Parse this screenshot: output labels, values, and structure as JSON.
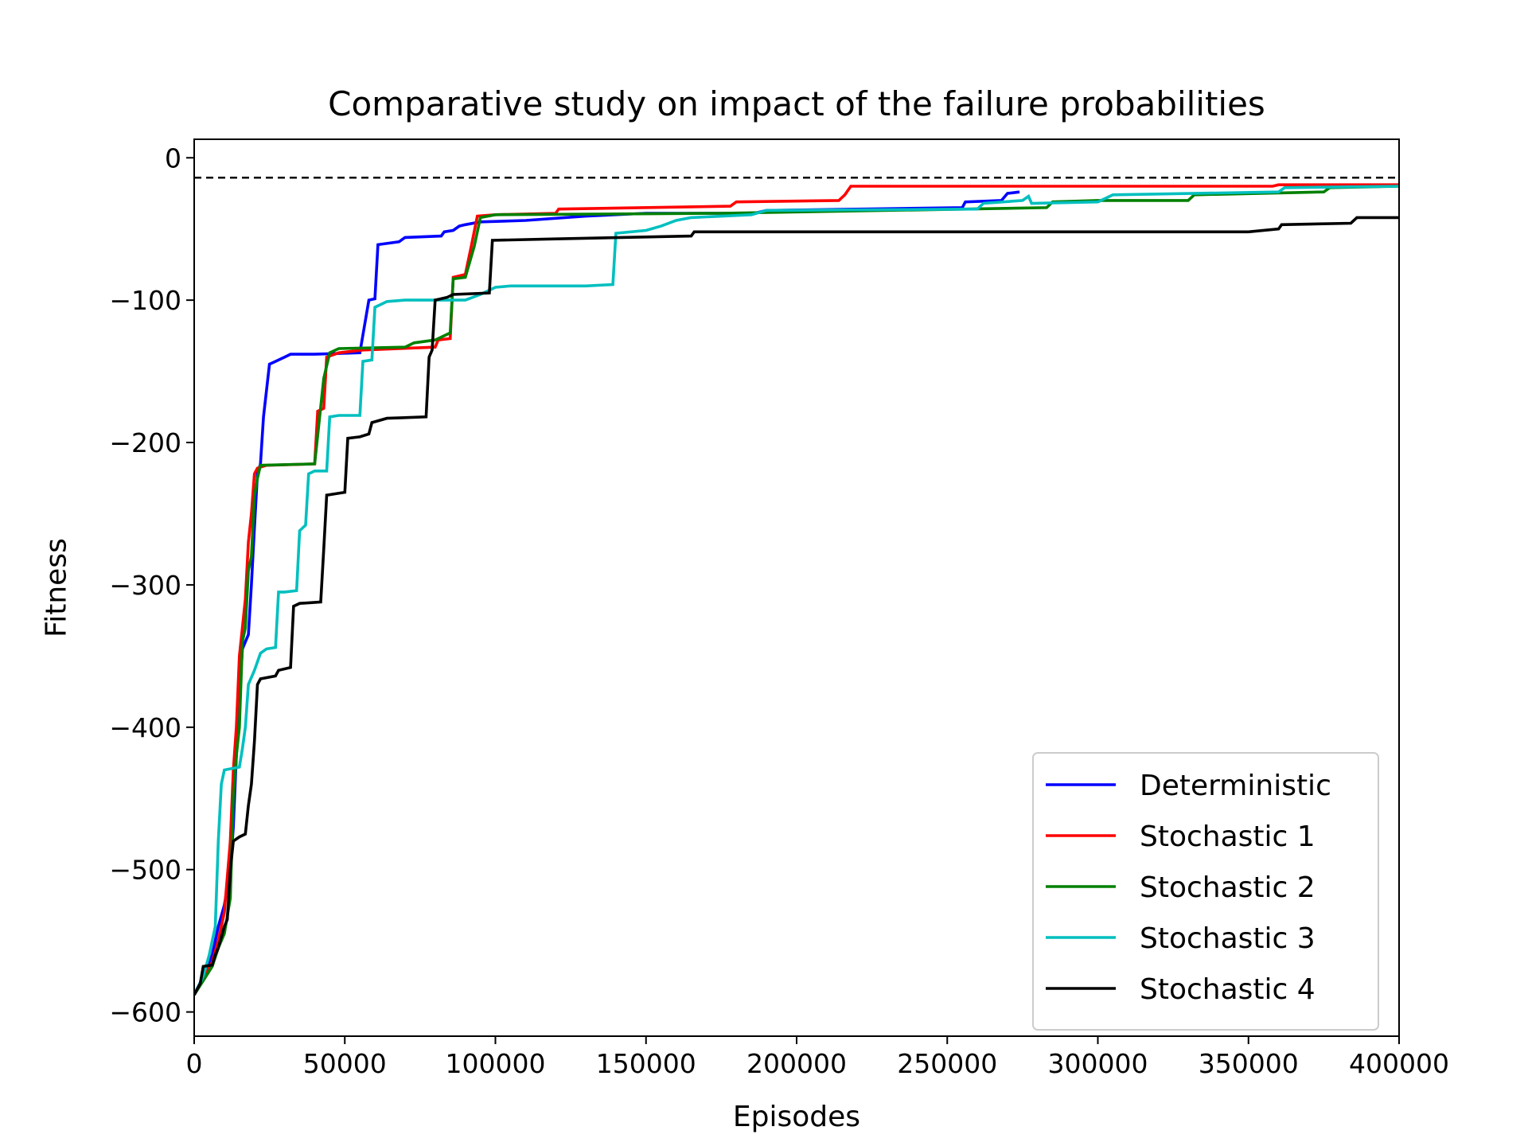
{
  "chart_data": {
    "type": "line",
    "title": "Comparative study on impact of the failure probabilities",
    "xlabel": "Episodes",
    "ylabel": "Fitness",
    "xlim": [
      0,
      400000
    ],
    "ylim": [
      -617,
      13
    ],
    "xticks": [
      "0",
      "50000",
      "100000",
      "150000",
      "200000",
      "250000",
      "300000",
      "350000",
      "400000"
    ],
    "xtick_values": [
      0,
      50000,
      100000,
      150000,
      200000,
      250000,
      300000,
      350000,
      400000
    ],
    "yticks": [
      "0",
      "−100",
      "−200",
      "−300",
      "−400",
      "−500",
      "−600"
    ],
    "ytick_values": [
      0,
      -100,
      -200,
      -300,
      -400,
      -500,
      -600
    ],
    "grid": false,
    "legend_position": "lower-right",
    "reference_line": {
      "y": -14,
      "style": "dashed",
      "color": "#000000"
    },
    "series": [
      {
        "name": "Deterministic",
        "color": "#0000ff",
        "points": [
          [
            0,
            -588
          ],
          [
            3000,
            -575
          ],
          [
            6000,
            -560
          ],
          [
            8000,
            -540
          ],
          [
            10000,
            -525
          ],
          [
            12000,
            -500
          ],
          [
            13000,
            -470
          ],
          [
            14000,
            -420
          ],
          [
            15000,
            -380
          ],
          [
            16000,
            -345
          ],
          [
            17000,
            -340
          ],
          [
            18000,
            -335
          ],
          [
            19000,
            -300
          ],
          [
            20000,
            -260
          ],
          [
            21000,
            -222
          ],
          [
            22000,
            -215
          ],
          [
            23000,
            -182
          ],
          [
            25000,
            -145
          ],
          [
            27000,
            -143
          ],
          [
            30000,
            -140
          ],
          [
            32000,
            -138
          ],
          [
            40000,
            -138
          ],
          [
            55000,
            -137
          ],
          [
            58000,
            -100
          ],
          [
            60000,
            -99
          ],
          [
            61000,
            -61
          ],
          [
            68000,
            -59
          ],
          [
            70000,
            -56
          ],
          [
            82000,
            -55
          ],
          [
            83000,
            -52
          ],
          [
            86000,
            -51
          ],
          [
            88000,
            -48
          ],
          [
            90000,
            -47
          ],
          [
            95000,
            -45
          ],
          [
            110000,
            -44
          ],
          [
            130000,
            -41
          ],
          [
            150000,
            -39
          ],
          [
            186000,
            -39
          ],
          [
            190000,
            -37
          ],
          [
            255000,
            -35
          ],
          [
            256000,
            -31
          ],
          [
            268000,
            -30
          ],
          [
            270000,
            -25
          ],
          [
            274000,
            -24
          ]
        ]
      },
      {
        "name": "Stochastic 1",
        "color": "#ff0000",
        "points": [
          [
            0,
            -588
          ],
          [
            3000,
            -576
          ],
          [
            6000,
            -565
          ],
          [
            8000,
            -550
          ],
          [
            10000,
            -530
          ],
          [
            12000,
            -480
          ],
          [
            13000,
            -430
          ],
          [
            14000,
            -400
          ],
          [
            15000,
            -350
          ],
          [
            16000,
            -330
          ],
          [
            17000,
            -310
          ],
          [
            18000,
            -270
          ],
          [
            19000,
            -250
          ],
          [
            20000,
            -222
          ],
          [
            21000,
            -218
          ],
          [
            24000,
            -216
          ],
          [
            40000,
            -215
          ],
          [
            41000,
            -178
          ],
          [
            43000,
            -176
          ],
          [
            44000,
            -140
          ],
          [
            48000,
            -137
          ],
          [
            56000,
            -135
          ],
          [
            80000,
            -133
          ],
          [
            81000,
            -128
          ],
          [
            85000,
            -127
          ],
          [
            86000,
            -84
          ],
          [
            90000,
            -82
          ],
          [
            92000,
            -62
          ],
          [
            94000,
            -41
          ],
          [
            100000,
            -40
          ],
          [
            120000,
            -39
          ],
          [
            121000,
            -36
          ],
          [
            178000,
            -34
          ],
          [
            180000,
            -31
          ],
          [
            214000,
            -30
          ],
          [
            216000,
            -26
          ],
          [
            218000,
            -20
          ],
          [
            358000,
            -20
          ],
          [
            360000,
            -19
          ],
          [
            400000,
            -19
          ]
        ]
      },
      {
        "name": "Stochastic 2",
        "color": "#008000",
        "points": [
          [
            0,
            -588
          ],
          [
            3000,
            -578
          ],
          [
            6000,
            -568
          ],
          [
            8000,
            -555
          ],
          [
            10000,
            -545
          ],
          [
            12000,
            -520
          ],
          [
            13000,
            -450
          ],
          [
            14000,
            -420
          ],
          [
            15000,
            -400
          ],
          [
            16000,
            -340
          ],
          [
            17000,
            -330
          ],
          [
            18000,
            -290
          ],
          [
            19000,
            -280
          ],
          [
            20000,
            -238
          ],
          [
            21000,
            -225
          ],
          [
            22000,
            -216
          ],
          [
            40000,
            -215
          ],
          [
            43000,
            -155
          ],
          [
            45000,
            -137
          ],
          [
            48000,
            -134
          ],
          [
            70000,
            -133
          ],
          [
            73000,
            -130
          ],
          [
            80000,
            -128
          ],
          [
            85000,
            -123
          ],
          [
            86000,
            -85
          ],
          [
            90000,
            -84
          ],
          [
            93000,
            -62
          ],
          [
            95000,
            -42
          ],
          [
            100000,
            -40
          ],
          [
            175000,
            -39
          ],
          [
            283000,
            -35
          ],
          [
            285000,
            -31
          ],
          [
            300000,
            -30
          ],
          [
            330000,
            -30
          ],
          [
            332000,
            -26
          ],
          [
            375000,
            -24
          ],
          [
            377000,
            -21
          ],
          [
            400000,
            -20
          ]
        ]
      },
      {
        "name": "Stochastic 3",
        "color": "#00bfbf",
        "points": [
          [
            0,
            -588
          ],
          [
            3000,
            -575
          ],
          [
            5000,
            -560
          ],
          [
            7000,
            -540
          ],
          [
            8000,
            -480
          ],
          [
            9000,
            -440
          ],
          [
            10000,
            -430
          ],
          [
            15000,
            -428
          ],
          [
            16000,
            -415
          ],
          [
            17000,
            -400
          ],
          [
            18000,
            -370
          ],
          [
            20000,
            -360
          ],
          [
            22000,
            -348
          ],
          [
            24000,
            -345
          ],
          [
            27000,
            -344
          ],
          [
            28000,
            -305
          ],
          [
            30000,
            -305
          ],
          [
            34000,
            -304
          ],
          [
            35000,
            -262
          ],
          [
            37000,
            -258
          ],
          [
            38000,
            -222
          ],
          [
            40000,
            -220
          ],
          [
            44000,
            -220
          ],
          [
            45000,
            -182
          ],
          [
            48000,
            -181
          ],
          [
            55000,
            -181
          ],
          [
            56000,
            -143
          ],
          [
            59000,
            -142
          ],
          [
            60000,
            -105
          ],
          [
            64000,
            -101
          ],
          [
            70000,
            -100
          ],
          [
            90000,
            -100
          ],
          [
            95000,
            -96
          ],
          [
            100000,
            -91
          ],
          [
            105000,
            -90
          ],
          [
            130000,
            -90
          ],
          [
            139000,
            -89
          ],
          [
            140000,
            -53
          ],
          [
            150000,
            -51
          ],
          [
            155000,
            -48
          ],
          [
            160000,
            -44
          ],
          [
            165000,
            -42
          ],
          [
            185000,
            -40
          ],
          [
            190000,
            -37
          ],
          [
            260000,
            -36
          ],
          [
            262000,
            -32
          ],
          [
            275000,
            -30
          ],
          [
            277000,
            -27
          ],
          [
            278000,
            -32
          ],
          [
            300000,
            -31
          ],
          [
            305000,
            -26
          ],
          [
            360000,
            -24
          ],
          [
            362000,
            -21
          ],
          [
            400000,
            -20
          ]
        ]
      },
      {
        "name": "Stochastic 4",
        "color": "#000000",
        "points": [
          [
            0,
            -588
          ],
          [
            2000,
            -580
          ],
          [
            3000,
            -568
          ],
          [
            6000,
            -567
          ],
          [
            7000,
            -560
          ],
          [
            8000,
            -555
          ],
          [
            10000,
            -540
          ],
          [
            11000,
            -535
          ],
          [
            12000,
            -500
          ],
          [
            13000,
            -480
          ],
          [
            15000,
            -477
          ],
          [
            17000,
            -475
          ],
          [
            18000,
            -455
          ],
          [
            19000,
            -440
          ],
          [
            20000,
            -410
          ],
          [
            21000,
            -370
          ],
          [
            22000,
            -366
          ],
          [
            27000,
            -364
          ],
          [
            28000,
            -360
          ],
          [
            32000,
            -358
          ],
          [
            33000,
            -315
          ],
          [
            35000,
            -313
          ],
          [
            42000,
            -312
          ],
          [
            43000,
            -275
          ],
          [
            44000,
            -237
          ],
          [
            47000,
            -236
          ],
          [
            50000,
            -235
          ],
          [
            51000,
            -197
          ],
          [
            55000,
            -196
          ],
          [
            58000,
            -194
          ],
          [
            59000,
            -186
          ],
          [
            64000,
            -183
          ],
          [
            77000,
            -182
          ],
          [
            78000,
            -140
          ],
          [
            79000,
            -135
          ],
          [
            80000,
            -100
          ],
          [
            84000,
            -98
          ],
          [
            86000,
            -96
          ],
          [
            98000,
            -95
          ],
          [
            99000,
            -58
          ],
          [
            120000,
            -57
          ],
          [
            165000,
            -55
          ],
          [
            166000,
            -52
          ],
          [
            200000,
            -52
          ],
          [
            280000,
            -52
          ],
          [
            350000,
            -52
          ],
          [
            360000,
            -50
          ],
          [
            361000,
            -47
          ],
          [
            384000,
            -46
          ],
          [
            386000,
            -42
          ],
          [
            400000,
            -42
          ]
        ]
      }
    ]
  }
}
